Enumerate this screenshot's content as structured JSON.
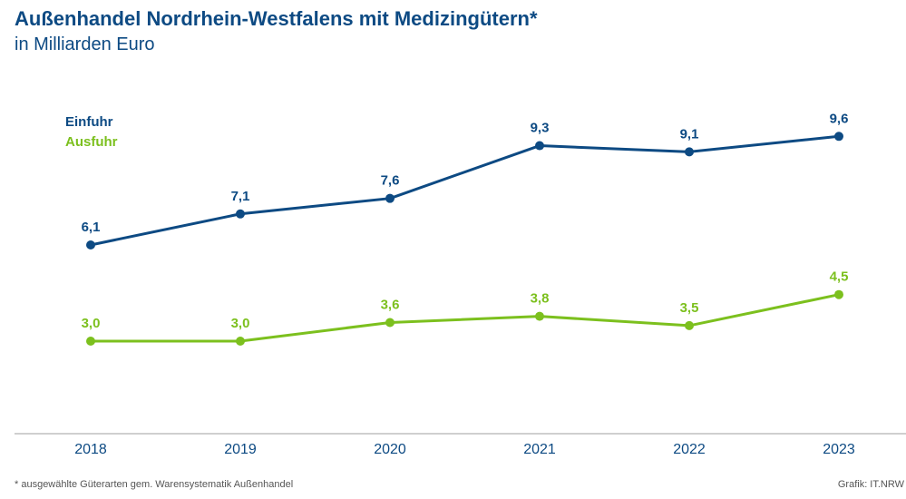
{
  "header": {
    "title": "Außenhandel Nordrhein-Westfalens mit Medizingütern*",
    "subtitle": "in Milliarden Euro"
  },
  "footer": {
    "footnote": "* ausgewählte Güterarten gem. Warensystematik Außenhandel",
    "credit": "Grafik: IT.NRW"
  },
  "colors": {
    "einfuhr": "#0d4a83",
    "ausfuhr": "#7cc01e",
    "axis": "#bfbfbf"
  },
  "chart_data": {
    "type": "line",
    "title": "Außenhandel Nordrhein-Westfalens mit Medizingütern*",
    "subtitle": "in Milliarden Euro",
    "x": [
      "2018",
      "2019",
      "2020",
      "2021",
      "2022",
      "2023"
    ],
    "series": [
      {
        "name": "Einfuhr",
        "values": [
          6.1,
          7.1,
          7.6,
          9.3,
          9.1,
          9.6
        ],
        "labels": [
          "6,1",
          "7,1",
          "7,6",
          "9,3",
          "9,1",
          "9,6"
        ]
      },
      {
        "name": "Ausfuhr",
        "values": [
          3.0,
          3.0,
          3.6,
          3.8,
          3.5,
          4.5
        ],
        "labels": [
          "3,0",
          "3,0",
          "3,6",
          "3,8",
          "3,5",
          "4,5"
        ]
      }
    ],
    "legend": "top-left",
    "grid": false
  }
}
